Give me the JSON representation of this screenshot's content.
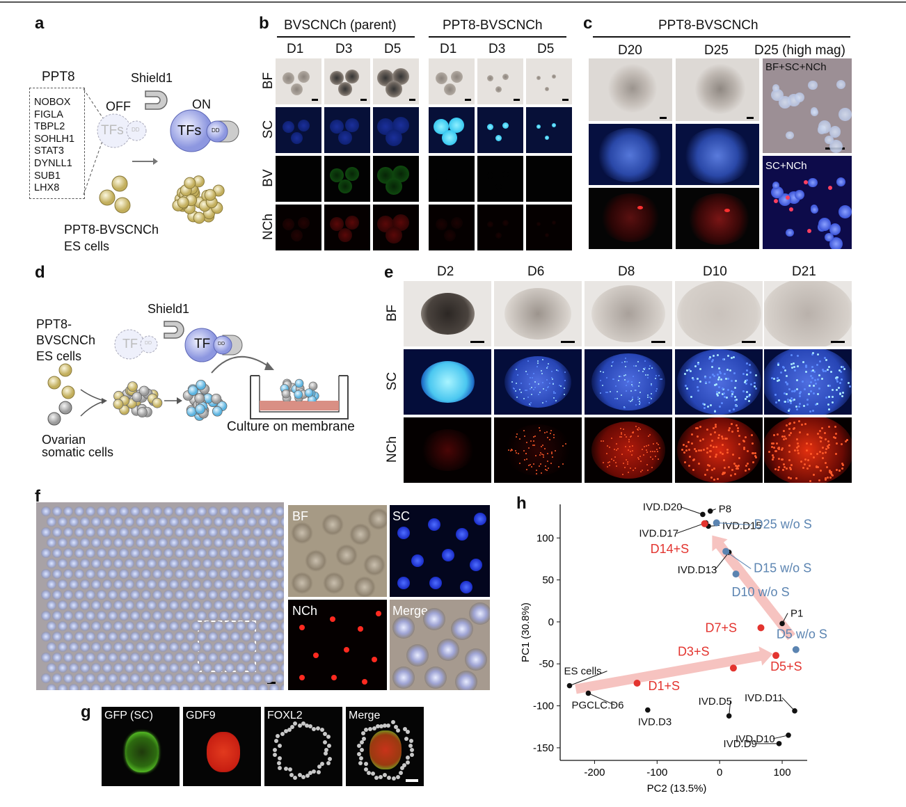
{
  "panels": {
    "a": {
      "label": "a",
      "ppt8_title": "PPT8",
      "genes": [
        "NOBOX",
        "FIGLA",
        "TBPL2",
        "SOHLH1",
        "STAT3",
        "DYNLL1",
        "SUB1",
        "LHX8"
      ],
      "shield1": "Shield1",
      "off": "OFF",
      "on": "ON",
      "tfs_off": "TFs",
      "tfs_on": "TFs",
      "dd": "DD",
      "cells_line1": "PPT8-BVSCNCh",
      "cells_line2": "ES cells"
    },
    "b": {
      "label": "b",
      "group1": "BVSCNCh (parent)",
      "group2": "PPT8-BVSCNCh",
      "days": [
        "D1",
        "D3",
        "D5",
        "D1",
        "D3",
        "D5"
      ],
      "rows": [
        "BF",
        "SC",
        "BV",
        "NCh"
      ]
    },
    "c": {
      "label": "c",
      "group": "PPT8-BVSCNCh",
      "days": [
        "D20",
        "D25",
        "D25 (high mag)"
      ],
      "inset1": "BF+SC+NCh",
      "inset2": "SC+NCh"
    },
    "d": {
      "label": "d",
      "shield1": "Shield1",
      "cells_line1": "PPT8-",
      "cells_line2": "BVSCNCh",
      "cells_line3": "ES cells",
      "tf_off": "TF",
      "tf_on": "TF",
      "dd": "DD",
      "somatic_line1": "Ovarian",
      "somatic_line2": "somatic cells",
      "culture": "Culture on membrane"
    },
    "e": {
      "label": "e",
      "days": [
        "D2",
        "D6",
        "D8",
        "D10",
        "D21"
      ],
      "rows": [
        "BF",
        "SC",
        "NCh"
      ]
    },
    "f": {
      "label": "f",
      "insets": [
        "BF",
        "SC",
        "NCh",
        "Merge"
      ]
    },
    "g": {
      "label": "g",
      "channels": [
        "GFP (SC)",
        "GDF9",
        "FOXL2",
        "Merge"
      ]
    },
    "h": {
      "label": "h"
    }
  },
  "chart_data": {
    "type": "scatter",
    "xlabel": "PC2 (13.5%)",
    "ylabel": "PC1 (30.8%)",
    "xlim": [
      -255,
      140
    ],
    "ylim": [
      -165,
      140
    ],
    "xticks": [
      -200,
      -100,
      0,
      100
    ],
    "yticks": [
      -150,
      -100,
      -50,
      0,
      50,
      100
    ],
    "colors": {
      "black": "#111111",
      "red": "#e3342f",
      "blue": "#5b84b1"
    },
    "points": [
      {
        "label": "ES cells",
        "x": -240,
        "y": -76,
        "color": "black"
      },
      {
        "label": "PGCLC.D6",
        "x": -210,
        "y": -85,
        "color": "black"
      },
      {
        "label": "IVD.D3",
        "x": -115,
        "y": -105,
        "color": "black"
      },
      {
        "label": "IVD.D5",
        "x": 15,
        "y": -112,
        "color": "black"
      },
      {
        "label": "IVD.D11",
        "x": 120,
        "y": -106,
        "color": "black"
      },
      {
        "label": "IVD.D10",
        "x": 110,
        "y": -135,
        "color": "black"
      },
      {
        "label": "IVD.D9",
        "x": 95,
        "y": -145,
        "color": "black"
      },
      {
        "label": "P1",
        "x": 100,
        "y": -2,
        "color": "black"
      },
      {
        "label": "IVD.D20",
        "x": -27,
        "y": 128,
        "color": "black"
      },
      {
        "label": "P8",
        "x": -15,
        "y": 132,
        "color": "black"
      },
      {
        "label": "IVD.D17",
        "x": -22,
        "y": 118,
        "color": "black"
      },
      {
        "label": "IVD.D15",
        "x": -18,
        "y": 114,
        "color": "black"
      },
      {
        "label": "IVD.D13",
        "x": 15,
        "y": 83,
        "color": "black"
      },
      {
        "label": "D1+S",
        "x": -132,
        "y": -73,
        "color": "red"
      },
      {
        "label": "D3+S",
        "x": 22,
        "y": -55,
        "color": "red"
      },
      {
        "label": "D7+S",
        "x": 66,
        "y": -7,
        "color": "red"
      },
      {
        "label": "D5+S",
        "x": 90,
        "y": -40,
        "color": "red"
      },
      {
        "label": "D14+S",
        "x": -24,
        "y": 117,
        "color": "red"
      },
      {
        "label": "D25 w/o S",
        "x": -5,
        "y": 118,
        "color": "blue"
      },
      {
        "label": "D15 w/o S",
        "x": 10,
        "y": 84,
        "color": "blue"
      },
      {
        "label": "D10 w/o S",
        "x": 26,
        "y": 57,
        "color": "blue"
      },
      {
        "label": "D5 w/o S",
        "x": 122,
        "y": -33,
        "color": "blue"
      }
    ]
  }
}
